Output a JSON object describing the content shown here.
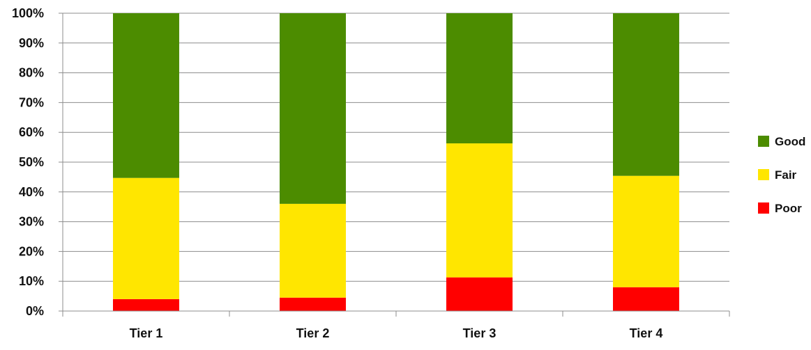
{
  "chart_data": {
    "type": "bar",
    "stacked": true,
    "categories": [
      "Tier 1",
      "Tier 2",
      "Tier 3",
      "Tier 4"
    ],
    "series": [
      {
        "name": "Poor",
        "color": "#ff0000",
        "values": [
          4,
          4.5,
          11.3,
          8
        ]
      },
      {
        "name": "Fair",
        "color": "#ffe600",
        "values": [
          40.7,
          31.5,
          45,
          37.4
        ]
      },
      {
        "name": "Good",
        "color": "#4c8c00",
        "values": [
          55.3,
          64,
          43.7,
          54.6
        ]
      }
    ],
    "ylim": [
      0,
      100
    ],
    "y_ticks": [
      "0%",
      "10%",
      "20%",
      "30%",
      "40%",
      "50%",
      "60%",
      "70%",
      "80%",
      "90%",
      "100%"
    ],
    "grid": true,
    "legend": {
      "position": "right",
      "entries": [
        "Good",
        "Fair",
        "Poor"
      ]
    },
    "title": "",
    "xlabel": "",
    "ylabel": ""
  }
}
